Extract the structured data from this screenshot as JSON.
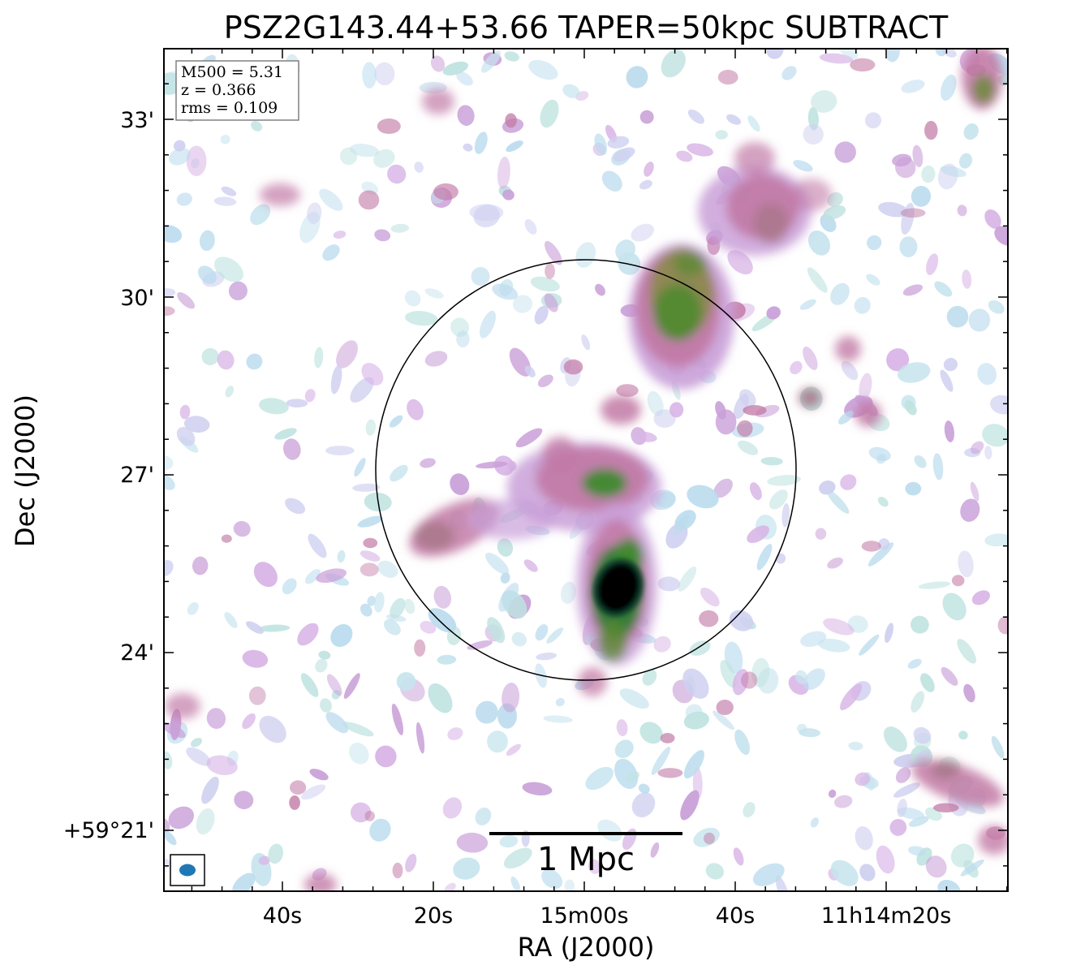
{
  "title": "PSZ2G143.44+53.66 TAPER=50kpc SUBTRACT",
  "info_box": {
    "m500": "M500 = 5.31",
    "z": "z = 0.366",
    "rms": "rms = 0.109"
  },
  "x_axis": {
    "label": "RA (J2000)",
    "ticks": [
      "40s",
      "20s",
      "15m00s",
      "40s",
      "11h14m20s"
    ]
  },
  "y_axis": {
    "label": "Dec (J2000)",
    "ticks": [
      "33'",
      "30'",
      "27'",
      "24'",
      "+59°21'"
    ]
  },
  "scale_bar": {
    "label": "1 Mpc"
  },
  "colors": {
    "beam": "#1f77b4",
    "axes": "#000000",
    "info_border": "#808080"
  }
}
